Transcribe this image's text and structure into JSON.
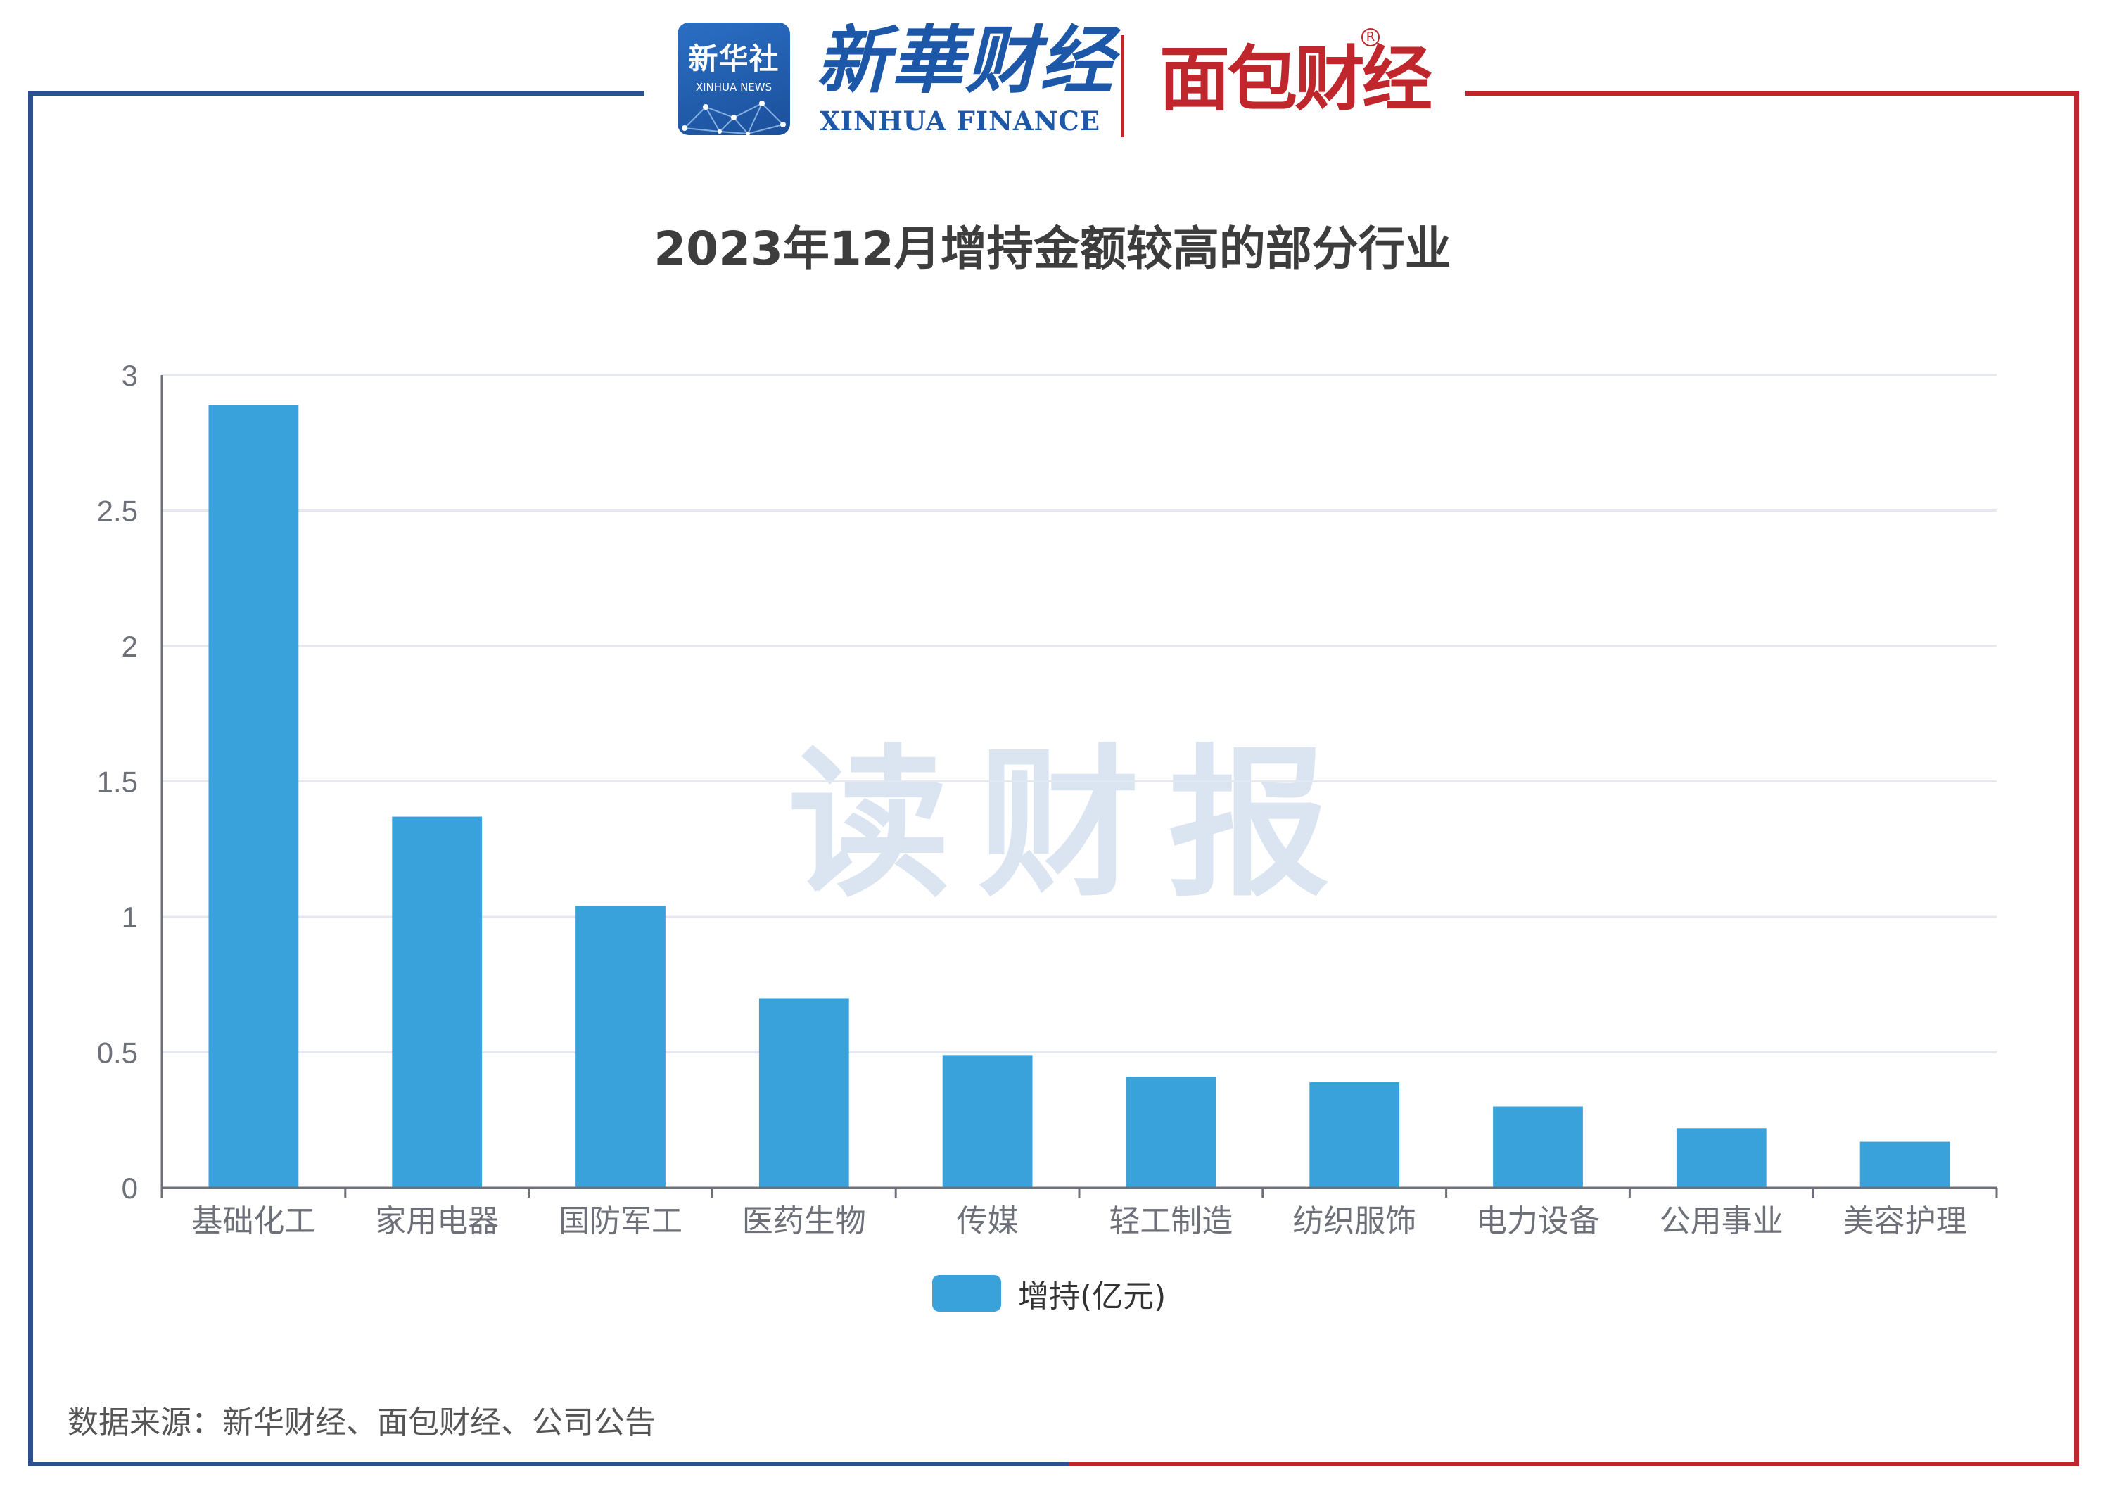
{
  "header": {
    "xinhua_badge_cn": "新华社",
    "xinhua_badge_en": "XINHUA NEWS",
    "xinhua_finance_cn": "新華财经",
    "xinhua_finance_en": "XINHUA FINANCE",
    "mianbao_logo": "面包财经",
    "registered_mark": "R"
  },
  "watermark": "读财报",
  "source_note": "数据来源：新华财经、面包财经、公司公告",
  "colors": {
    "bar": "#3aa2da",
    "grid": "#e3e8f1",
    "axis": "#6e7079",
    "frame_blue": "#2b4f8f",
    "frame_red": "#c0272d"
  },
  "chart_data": {
    "type": "bar",
    "title": "2023年12月增持金额较高的部分行业",
    "categories": [
      "基础化工",
      "家用电器",
      "国防军工",
      "医药生物",
      "传媒",
      "轻工制造",
      "纺织服饰",
      "电力设备",
      "公用事业",
      "美容护理"
    ],
    "series": [
      {
        "name": "增持(亿元)",
        "values": [
          2.89,
          1.37,
          1.04,
          0.7,
          0.49,
          0.41,
          0.39,
          0.3,
          0.22,
          0.17
        ]
      }
    ],
    "xlabel": "",
    "ylabel": "",
    "ylim": [
      0,
      3
    ],
    "yticks": [
      "0",
      "0.5",
      "1",
      "1.5",
      "2",
      "2.5",
      "3"
    ],
    "grid": true,
    "legend_position": "bottom-center"
  }
}
